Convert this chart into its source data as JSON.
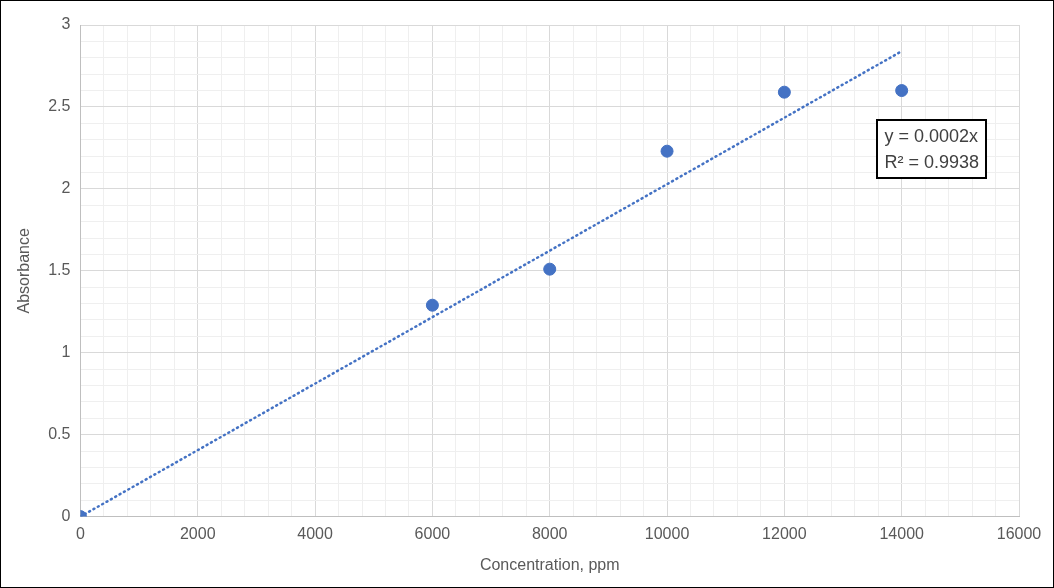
{
  "chart_data": {
    "type": "scatter",
    "xlabel": "Concentration, ppm",
    "ylabel": "Absorbance",
    "x": [
      0,
      6000,
      8000,
      10000,
      12000,
      14000
    ],
    "series": [
      {
        "color": "#4472c4",
        "values": [
          0,
          1.29,
          1.51,
          2.23,
          2.59,
          2.6
        ],
        "marker": "circle"
      },
      {
        "type": "line",
        "color": "#4472c4",
        "x": [
          0,
          14000
        ],
        "values": [
          0,
          2.84
        ],
        "line_style": "dotted",
        "marker": "none"
      }
    ],
    "xlim": [
      0,
      16000
    ],
    "ylim": [
      0,
      3
    ],
    "xticks": [
      0,
      {
        "value": 400,
        "label": null
      },
      {
        "value": 800,
        "label": null
      },
      {
        "value": 1200,
        "label": null
      },
      {
        "value": 1600,
        "label": null
      },
      2000,
      {
        "value": 2400,
        "label": null
      },
      {
        "value": 2800,
        "label": null
      },
      {
        "value": 3200,
        "label": null
      },
      {
        "value": 3600,
        "label": null
      },
      4000,
      {
        "value": 4400,
        "label": null
      },
      {
        "value": 4800,
        "label": null
      },
      {
        "value": 5200,
        "label": null
      },
      {
        "value": 5600,
        "label": null
      },
      6000,
      {
        "value": 6400,
        "label": null
      },
      {
        "value": 6800,
        "label": null
      },
      {
        "value": 7200,
        "label": null
      },
      {
        "value": 7600,
        "label": null
      },
      8000,
      {
        "value": 8400,
        "label": null
      },
      {
        "value": 8800,
        "label": null
      },
      {
        "value": 9200,
        "label": null
      },
      {
        "value": 9600,
        "label": null
      },
      10000,
      {
        "value": 10400,
        "label": null
      },
      {
        "value": 10800,
        "label": null
      },
      {
        "value": 11200,
        "label": null
      },
      {
        "value": 11600,
        "label": null
      },
      12000,
      {
        "value": 12400,
        "label": null
      },
      {
        "value": 12800,
        "label": null
      },
      {
        "value": 13200,
        "label": null
      },
      {
        "value": 13600,
        "label": null
      },
      14000,
      {
        "value": 14400,
        "label": null
      },
      {
        "value": 14800,
        "label": null
      },
      {
        "value": 15200,
        "label": null
      },
      {
        "value": 15600,
        "label": null
      },
      16000
    ],
    "yticks": [
      0,
      {
        "value": 0.1,
        "label": null
      },
      {
        "value": 0.2,
        "label": null
      },
      {
        "value": 0.3,
        "label": null
      },
      {
        "value": 0.4,
        "label": null
      },
      0.5,
      {
        "value": 0.6,
        "label": null
      },
      {
        "value": 0.7,
        "label": null
      },
      {
        "value": 0.8,
        "label": null
      },
      {
        "value": 0.9,
        "label": null
      },
      1,
      {
        "value": 1.1,
        "label": null
      },
      {
        "value": 1.2,
        "label": null
      },
      {
        "value": 1.3,
        "label": null
      },
      {
        "value": 1.4,
        "label": null
      },
      1.5,
      {
        "value": 1.6,
        "label": null
      },
      {
        "value": 1.7,
        "label": null
      },
      {
        "value": 1.8,
        "label": null
      },
      {
        "value": 1.9,
        "label": null
      },
      2,
      {
        "value": 2.1,
        "label": null
      },
      {
        "value": 2.2,
        "label": null
      },
      {
        "value": 2.3,
        "label": null
      },
      {
        "value": 2.4,
        "label": null
      },
      2.5,
      {
        "value": 2.6,
        "label": null
      },
      {
        "value": 2.7,
        "label": null
      },
      {
        "value": 2.8,
        "label": null
      },
      {
        "value": 2.9,
        "label": null
      },
      3
    ],
    "grid": true,
    "legend": false,
    "annotations": [
      "y = 0.0002x",
      "R² = 0.9938"
    ]
  }
}
